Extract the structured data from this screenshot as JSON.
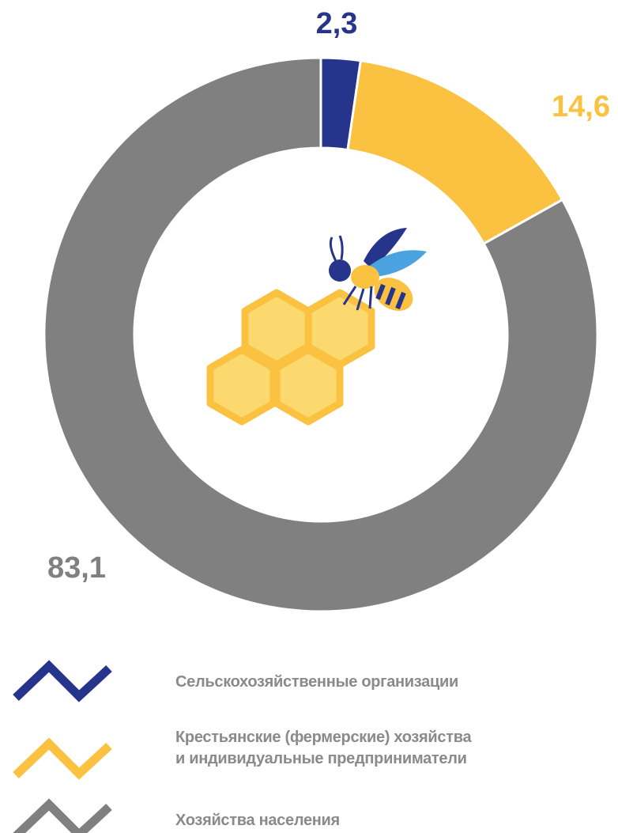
{
  "chart_data": {
    "type": "pie",
    "categories": [
      "Сельскохозяйственные организации",
      "Крестьянские (фермерские) хозяйства\nи индивидуальные предприниматели",
      "Хозяйства населения"
    ],
    "values": [
      2.3,
      14.6,
      83.1
    ],
    "value_labels": [
      "2,3",
      "14,6",
      "83,1"
    ],
    "colors": [
      "#27348b",
      "#fbc140",
      "#808080"
    ],
    "donut": true
  }
}
